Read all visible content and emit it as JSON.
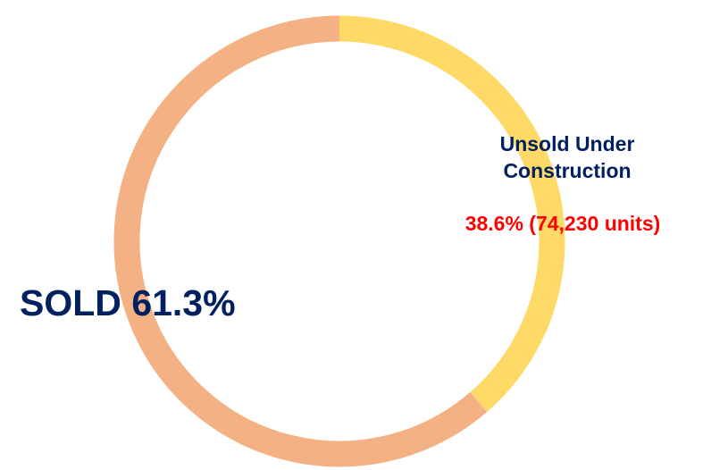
{
  "chart_data": {
    "type": "donut",
    "categories": [
      "Unsold Under Construction",
      "SOLD"
    ],
    "values": [
      38.6,
      61.3
    ],
    "value_labels": [
      "38.6% (74,230 units)",
      "61.3%"
    ],
    "colors": [
      "#ffd966",
      "#f4b183"
    ]
  }
}
